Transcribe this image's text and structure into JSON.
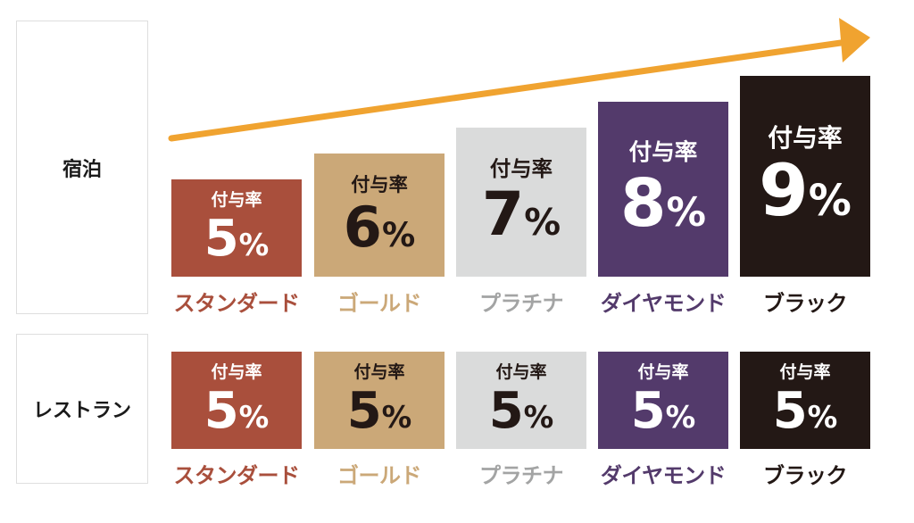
{
  "chart_data": [
    {
      "type": "bar",
      "row_label": "宿泊",
      "rate_label": "付与率",
      "unit": "%",
      "categories": [
        "スタンダード",
        "ゴールド",
        "プラチナ",
        "ダイヤモンド",
        "ブラック"
      ],
      "values": [
        5,
        6,
        7,
        8,
        9
      ],
      "trend_arrow": true
    },
    {
      "type": "bar",
      "row_label": "レストラン",
      "rate_label": "付与率",
      "unit": "%",
      "categories": [
        "スタンダード",
        "ゴールド",
        "プラチナ",
        "ダイヤモンド",
        "ブラック"
      ],
      "values": [
        5,
        5,
        5,
        5,
        5
      ]
    }
  ],
  "tier_colors": {
    "bar": [
      "#a94f3c",
      "#cba878",
      "#dadbdb",
      "#533a6b",
      "#231815"
    ],
    "bar_text": [
      "#ffffff",
      "#231815",
      "#231815",
      "#ffffff",
      "#ffffff"
    ],
    "label": [
      "#a94f3c",
      "#cba878",
      "#a3a4a4",
      "#533a6b",
      "#231815"
    ]
  },
  "arrow_color": "#f0a330"
}
